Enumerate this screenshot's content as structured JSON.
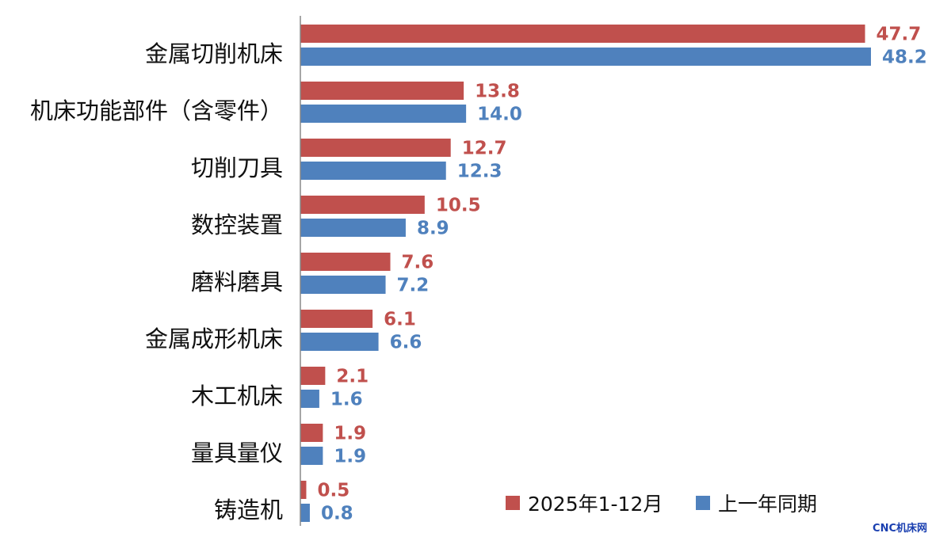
{
  "colors": {
    "series_current": "#c0504d",
    "series_previous": "#4f81bd",
    "axis": "#888888",
    "watermark": "#1a3fb0"
  },
  "watermark": "CNC机床网",
  "chart_data": {
    "type": "bar",
    "orientation": "horizontal",
    "categories": [
      "金属切削机床",
      "机床功能部件（含零件）",
      "切削刀具",
      "数控装置",
      "磨料磨具",
      "金属成形机床",
      "木工机床",
      "量具量仪",
      "铸造机"
    ],
    "series": [
      {
        "name": "2025年1-12月",
        "color": "#c0504d",
        "values": [
          47.7,
          13.8,
          12.7,
          10.5,
          7.6,
          6.1,
          2.1,
          1.9,
          0.5
        ]
      },
      {
        "name": "上一年同期",
        "color": "#4f81bd",
        "values": [
          48.2,
          14.0,
          12.3,
          8.9,
          7.2,
          6.6,
          1.6,
          1.9,
          0.8
        ]
      }
    ],
    "value_labels": {
      "current": [
        "47.7",
        "13.8",
        "12.7",
        "10.5",
        "7.6",
        "6.1",
        "2.1",
        "1.9",
        "0.5"
      ],
      "previous": [
        "48.2",
        "14.0",
        "12.3",
        "8.9",
        "7.2",
        "6.6",
        "1.6",
        "1.9",
        "0.8"
      ]
    },
    "title": "",
    "xlabel": "",
    "ylabel": "",
    "xlim": [
      0,
      48.2
    ],
    "grid": false,
    "legend_position": "bottom-right"
  }
}
